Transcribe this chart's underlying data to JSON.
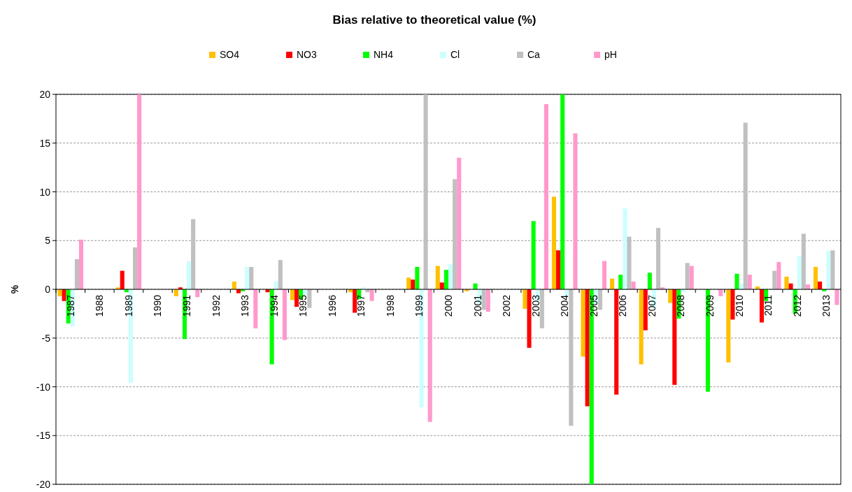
{
  "chart_data": {
    "type": "bar",
    "title": "Bias relative to theoretical value (%)",
    "ylabel": "%",
    "categories": [
      "1987",
      "1988",
      "1989",
      "1990",
      "1991",
      "1992",
      "1993",
      "1994",
      "1995",
      "1996",
      "1997",
      "1998",
      "1999",
      "2000",
      "2001",
      "2002",
      "2003",
      "2004",
      "2005",
      "2006",
      "2007",
      "2008",
      "2009",
      "2010",
      "2011",
      "2012",
      "2013"
    ],
    "series": [
      {
        "name": "SO4",
        "color": "#ffc000",
        "values": [
          -0.7,
          null,
          0.2,
          null,
          -0.7,
          null,
          0.8,
          null,
          -1.1,
          null,
          -0.3,
          null,
          1.2,
          2.4,
          -0.2,
          null,
          -2.0,
          9.5,
          -6.9,
          1.1,
          -7.7,
          -1.4,
          null,
          -7.5,
          0.3,
          1.3,
          2.3
        ]
      },
      {
        "name": "NO3",
        "color": "#ff0000",
        "values": [
          -1.2,
          null,
          1.9,
          null,
          0.2,
          null,
          -0.4,
          -0.3,
          -1.8,
          null,
          -2.4,
          null,
          1.0,
          0.7,
          null,
          null,
          -6.0,
          4.0,
          -12.0,
          -10.8,
          -4.2,
          -9.8,
          null,
          -3.1,
          -3.4,
          0.6,
          0.8
        ]
      },
      {
        "name": "NH4",
        "color": "#00ff00",
        "values": [
          -3.5,
          null,
          -0.3,
          null,
          -5.1,
          null,
          -0.2,
          -7.7,
          -1.0,
          null,
          -1.0,
          null,
          2.3,
          2.0,
          0.6,
          null,
          7.0,
          20,
          -20,
          1.5,
          1.7,
          -3.0,
          -10.5,
          1.6,
          -1.2,
          -2.5,
          -0.2
        ]
      },
      {
        "name": "Cl",
        "color": "#ccffff",
        "values": [
          -3.8,
          null,
          -9.6,
          null,
          2.9,
          null,
          2.3,
          0.8,
          -0.6,
          null,
          0.2,
          null,
          -12.1,
          2.6,
          -1.6,
          null,
          -1.2,
          -0.8,
          -1.5,
          8.3,
          -1.9,
          -0.3,
          null,
          0.6,
          null,
          3.4,
          3.9
        ]
      },
      {
        "name": "Ca",
        "color": "#c0c0c0",
        "values": [
          3.1,
          null,
          4.3,
          null,
          7.2,
          null,
          2.3,
          3.0,
          -1.9,
          null,
          -0.3,
          null,
          20,
          11.3,
          -2.1,
          null,
          -4.0,
          -14.0,
          -2.1,
          5.4,
          6.3,
          2.7,
          null,
          17.1,
          1.9,
          5.7,
          4.0
        ]
      },
      {
        "name": "pH",
        "color": "#ff99cc",
        "values": [
          5.1,
          null,
          20,
          null,
          -0.8,
          null,
          -4.0,
          -5.2,
          null,
          null,
          -1.2,
          null,
          -13.6,
          13.5,
          -2.3,
          null,
          19.0,
          16.0,
          2.9,
          0.8,
          0.2,
          2.4,
          -0.7,
          1.5,
          2.8,
          0.5,
          -1.6
        ]
      }
    ],
    "ylim": [
      -20,
      20
    ],
    "yticks": [
      -20,
      -15,
      -10,
      -5,
      0,
      5,
      10,
      15,
      20
    ],
    "grid": "y",
    "legend": "top"
  }
}
